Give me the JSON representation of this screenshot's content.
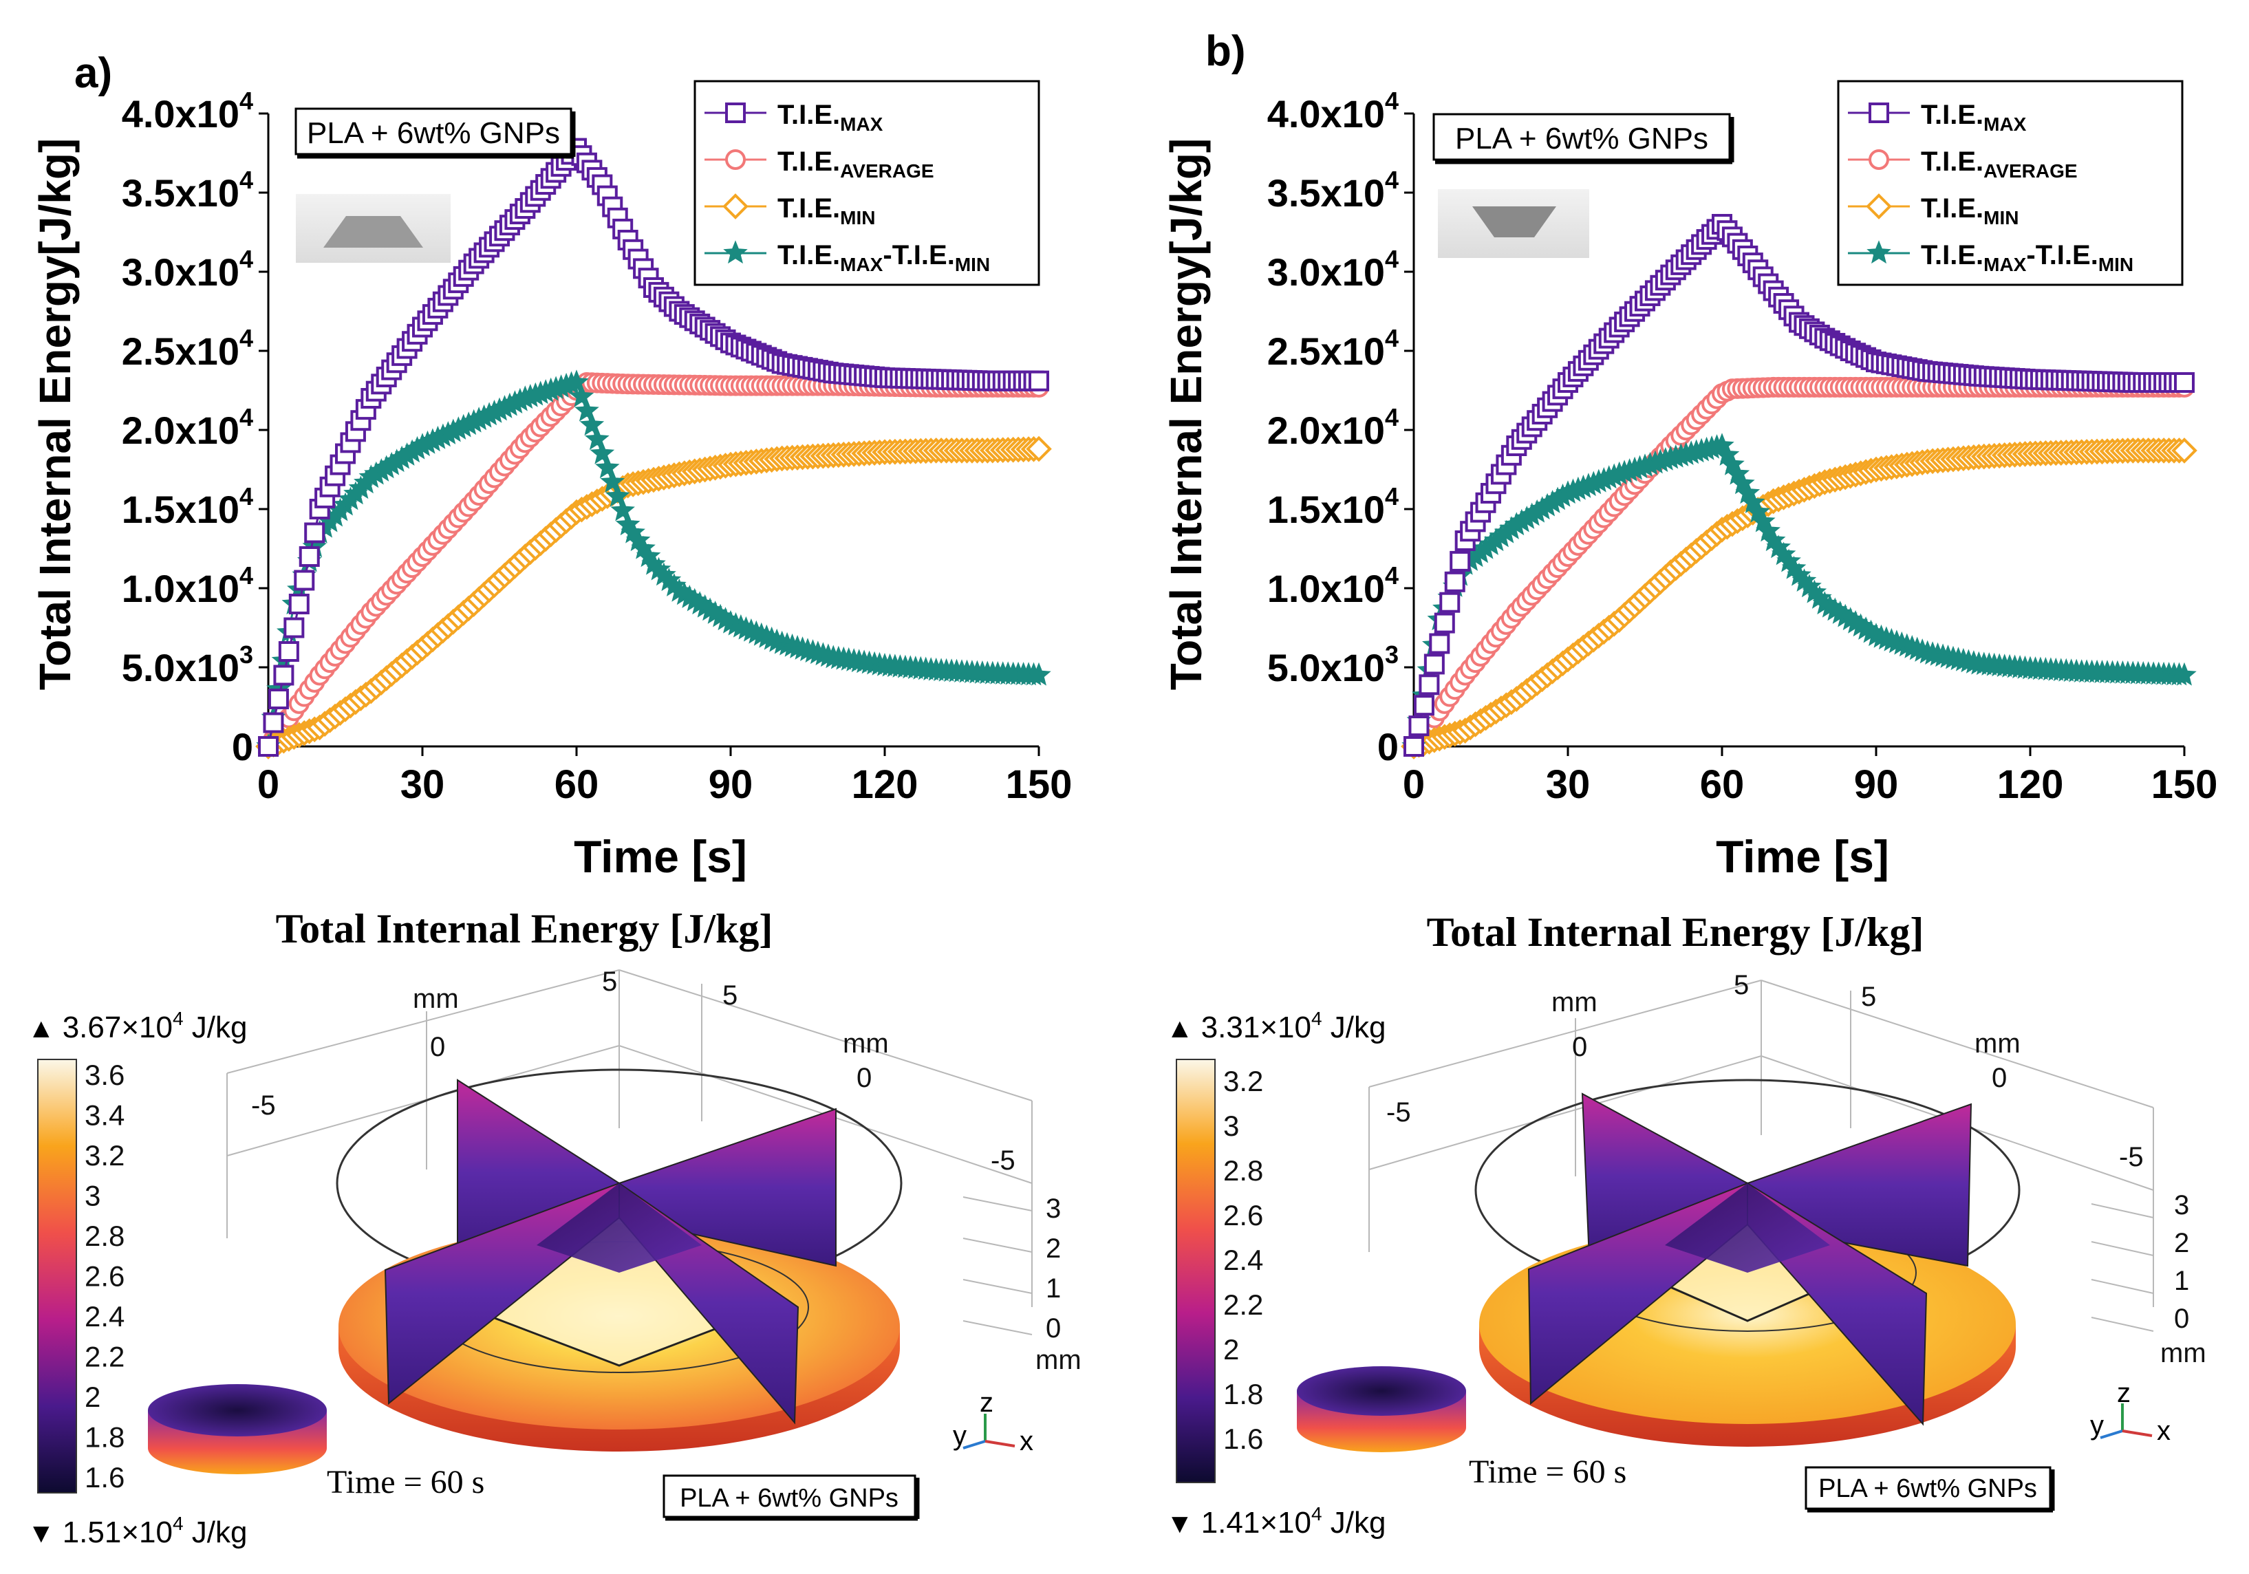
{
  "colors": {
    "max": "#5a1e9e",
    "average": "#f27878",
    "min": "#f5a623",
    "diff": "#1a8a80",
    "axis": "#000000"
  },
  "chart_data": [
    {
      "panel_label": "a)",
      "type": "scatter",
      "xlabel": "Time [s]",
      "ylabel": "Total Internal Energy[J/kg]",
      "xlim": [
        0,
        150
      ],
      "ylim": [
        0,
        40000
      ],
      "x_ticks": [
        0,
        30,
        60,
        90,
        120,
        150
      ],
      "x_tick_labels": [
        "0",
        "30",
        "60",
        "90",
        "120",
        "150"
      ],
      "y_ticks": [
        0,
        5000,
        10000,
        15000,
        20000,
        25000,
        30000,
        35000,
        40000
      ],
      "y_tick_mantissas": [
        "0",
        "5.0x10",
        "1.0x10",
        "1.5x10",
        "2.0x10",
        "2.5x10",
        "3.0x10",
        "3.5x10",
        "4.0x10"
      ],
      "y_tick_exponents": [
        "",
        "3",
        "4",
        "4",
        "4",
        "4",
        "4",
        "4",
        "4"
      ],
      "annotation": "PLA + 6wt% GNPs",
      "legend_position": "top-right",
      "series": [
        {
          "key": "max",
          "name_main": "T.I.E.",
          "name_sub": "MAX",
          "name_main2": "",
          "name_sub2": "",
          "marker": "square",
          "x": [
            0,
            10,
            20,
            30,
            40,
            50,
            60,
            65,
            70,
            75,
            80,
            85,
            90,
            100,
            110,
            120,
            130,
            140,
            150
          ],
          "y": [
            0,
            15000,
            22000,
            26500,
            30500,
            34000,
            37800,
            35500,
            32000,
            29000,
            27500,
            26500,
            25500,
            24200,
            23600,
            23300,
            23200,
            23100,
            23100
          ]
        },
        {
          "key": "average",
          "name_main": "T.I.E.",
          "name_sub": "AVERAGE",
          "name_main2": "",
          "name_sub2": "",
          "marker": "circle",
          "x": [
            0,
            10,
            20,
            30,
            40,
            50,
            60,
            62,
            70,
            90,
            110,
            130,
            150
          ],
          "y": [
            0,
            4500,
            8500,
            12000,
            15500,
            19200,
            22500,
            23000,
            22900,
            22800,
            22800,
            22700,
            22700
          ]
        },
        {
          "key": "min",
          "name_main": "T.I.E.",
          "name_sub": "MIN",
          "name_main2": "",
          "name_sub2": "",
          "marker": "diamond",
          "x": [
            0,
            10,
            20,
            30,
            40,
            50,
            60,
            70,
            80,
            90,
            100,
            110,
            120,
            130,
            140,
            150
          ],
          "y": [
            0,
            1200,
            3500,
            6200,
            9000,
            12000,
            14800,
            16500,
            17200,
            17800,
            18200,
            18400,
            18600,
            18700,
            18700,
            18800
          ]
        },
        {
          "key": "diff",
          "name_main": "T.I.E.",
          "name_sub": "MAX",
          "name_main2": "-T.I.E.",
          "name_sub2": "MIN",
          "marker": "star",
          "x": [
            0,
            5,
            10,
            20,
            30,
            40,
            50,
            60,
            65,
            70,
            75,
            80,
            90,
            100,
            110,
            120,
            130,
            140,
            150
          ],
          "y": [
            0,
            9000,
            13500,
            17000,
            19000,
            20500,
            22000,
            23000,
            18500,
            14000,
            11500,
            9800,
            7800,
            6500,
            5600,
            5100,
            4800,
            4600,
            4500
          ]
        }
      ]
    },
    {
      "panel_label": "b)",
      "type": "scatter",
      "xlabel": "Time [s]",
      "ylabel": "Total Internal Energy[J/kg]",
      "xlim": [
        0,
        150
      ],
      "ylim": [
        0,
        40000
      ],
      "x_ticks": [
        0,
        30,
        60,
        90,
        120,
        150
      ],
      "x_tick_labels": [
        "0",
        "30",
        "60",
        "90",
        "120",
        "150"
      ],
      "y_ticks": [
        0,
        5000,
        10000,
        15000,
        20000,
        25000,
        30000,
        35000,
        40000
      ],
      "y_tick_mantissas": [
        "0",
        "5.0x10",
        "1.0x10",
        "1.5x10",
        "2.0x10",
        "2.5x10",
        "3.0x10",
        "3.5x10",
        "4.0x10"
      ],
      "y_tick_exponents": [
        "",
        "3",
        "4",
        "4",
        "4",
        "4",
        "4",
        "4",
        "4"
      ],
      "annotation": "PLA + 6wt% GNPs",
      "legend_position": "top-right",
      "series": [
        {
          "key": "max",
          "name_main": "T.I.E.",
          "name_sub": "MAX",
          "name_main2": "",
          "name_sub2": "",
          "marker": "square",
          "x": [
            0,
            10,
            20,
            30,
            40,
            50,
            60,
            65,
            70,
            75,
            80,
            85,
            90,
            100,
            110,
            120,
            130,
            140,
            150
          ],
          "y": [
            0,
            13000,
            19000,
            23000,
            26500,
            29800,
            33000,
            31000,
            28800,
            26800,
            25800,
            25000,
            24300,
            23700,
            23400,
            23200,
            23100,
            23000,
            23000
          ]
        },
        {
          "key": "average",
          "name_main": "T.I.E.",
          "name_sub": "AVERAGE",
          "name_main2": "",
          "name_sub2": "",
          "marker": "circle",
          "x": [
            0,
            10,
            20,
            30,
            40,
            50,
            60,
            62,
            70,
            90,
            110,
            130,
            150
          ],
          "y": [
            0,
            4500,
            8500,
            12000,
            15500,
            19000,
            22300,
            22600,
            22700,
            22700,
            22700,
            22700,
            22700
          ]
        },
        {
          "key": "min",
          "name_main": "T.I.E.",
          "name_sub": "MIN",
          "name_main2": "",
          "name_sub2": "",
          "marker": "diamond",
          "x": [
            0,
            10,
            20,
            30,
            40,
            50,
            60,
            70,
            80,
            90,
            100,
            110,
            120,
            130,
            140,
            150
          ],
          "y": [
            0,
            1000,
            3000,
            5500,
            8000,
            11000,
            13700,
            15500,
            16700,
            17500,
            18000,
            18300,
            18500,
            18600,
            18700,
            18700
          ]
        },
        {
          "key": "diff",
          "name_main": "T.I.E.",
          "name_sub": "MAX",
          "name_main2": "-T.I.E.",
          "name_sub2": "MIN",
          "marker": "star",
          "x": [
            0,
            5,
            10,
            20,
            30,
            40,
            50,
            60,
            65,
            70,
            75,
            80,
            90,
            100,
            110,
            120,
            130,
            140,
            150
          ],
          "y": [
            0,
            8000,
            11500,
            14000,
            16000,
            17200,
            18200,
            19000,
            16000,
            13000,
            10800,
            9000,
            7000,
            5900,
            5200,
            4900,
            4700,
            4600,
            4500
          ]
        }
      ]
    }
  ],
  "simulations": [
    {
      "title": "Total Internal Energy [J/kg]",
      "colorbar_max": "3.67×10",
      "colorbar_max_exp": "4",
      "colorbar_min": "1.51×10",
      "colorbar_min_exp": "4",
      "unit": "J/kg",
      "colorbar_ticks": [
        "3.6",
        "3.4",
        "3.2",
        "3",
        "2.8",
        "2.6",
        "2.4",
        "2.2",
        "2",
        "1.8",
        "1.6"
      ],
      "time_label": "Time = 60 s",
      "annotation": "PLA + 6wt% GNPs",
      "axis_labels": [
        "mm",
        "0",
        "5",
        "5",
        "mm",
        "0",
        "-5",
        "-5",
        "3",
        "2",
        "1",
        "0",
        "mm"
      ],
      "triad": [
        "y",
        "z",
        "x"
      ]
    },
    {
      "title": "Total Internal Energy [J/kg]",
      "colorbar_max": "3.31×10",
      "colorbar_max_exp": "4",
      "colorbar_min": "1.41×10",
      "colorbar_min_exp": "4",
      "unit": "J/kg",
      "colorbar_ticks": [
        "3.2",
        "3",
        "2.8",
        "2.6",
        "2.4",
        "2.2",
        "2",
        "1.8",
        "1.6"
      ],
      "time_label": "Time = 60 s",
      "annotation": "PLA + 6wt% GNPs",
      "axis_labels": [
        "mm",
        "0",
        "5",
        "5",
        "mm",
        "0",
        "-5",
        "-5",
        "3",
        "2",
        "1",
        "0",
        "mm"
      ],
      "triad": [
        "y",
        "z",
        "x"
      ]
    }
  ]
}
